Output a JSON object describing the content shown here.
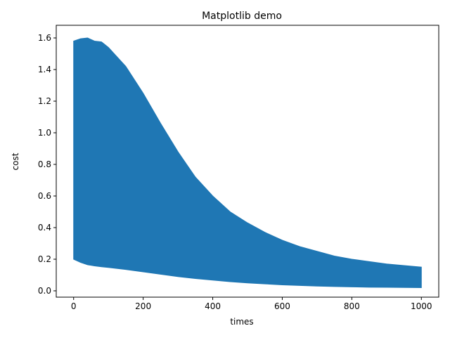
{
  "chart_data": {
    "type": "area",
    "title": "Matplotlib demo",
    "xlabel": "times",
    "ylabel": "cost",
    "xlim": [
      -50,
      1050
    ],
    "ylim": [
      -0.04,
      1.68
    ],
    "x_ticks": [
      0,
      200,
      400,
      600,
      800,
      1000
    ],
    "y_ticks": [
      0.0,
      0.2,
      0.4,
      0.6,
      0.8,
      1.0,
      1.2,
      1.4,
      1.6
    ],
    "grid": false,
    "legend": "none",
    "color": "#1f77b4",
    "series": [
      {
        "x": [
          0,
          20,
          40,
          60,
          80,
          100,
          150,
          200,
          250,
          300,
          350,
          400,
          450,
          500,
          550,
          600,
          650,
          700,
          750,
          800,
          850,
          900,
          950,
          1000
        ],
        "upper": [
          1.58,
          1.595,
          1.6,
          1.58,
          1.575,
          1.54,
          1.42,
          1.25,
          1.06,
          0.88,
          0.72,
          0.6,
          0.5,
          0.43,
          0.37,
          0.32,
          0.28,
          0.25,
          0.22,
          0.2,
          0.185,
          0.17,
          0.16,
          0.15
        ],
        "lower": [
          0.2,
          0.18,
          0.165,
          0.158,
          0.152,
          0.148,
          0.135,
          0.12,
          0.105,
          0.09,
          0.078,
          0.068,
          0.058,
          0.05,
          0.044,
          0.038,
          0.034,
          0.03,
          0.027,
          0.025,
          0.023,
          0.022,
          0.021,
          0.02
        ]
      }
    ]
  }
}
